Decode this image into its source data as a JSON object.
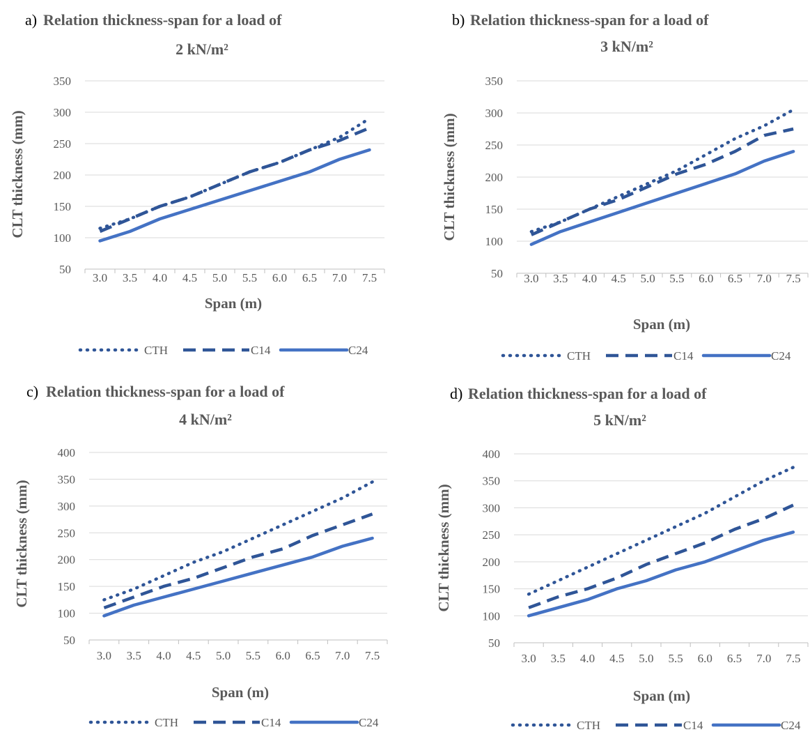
{
  "chart_data": [
    {
      "type": "line",
      "panel_label": "a)",
      "title": "Relation thickness-span for a load of",
      "subtitle": "2 kN/m²",
      "xlabel": "Span (m)",
      "ylabel": "CLT thickness (mm)",
      "categories": [
        "3.0",
        "3.5",
        "4.0",
        "4.5",
        "5.0",
        "5.5",
        "6.0",
        "6.5",
        "7.0",
        "7.5"
      ],
      "ylim": [
        50,
        350
      ],
      "yticks": [
        "50",
        "100",
        "150",
        "200",
        "250",
        "300",
        "350"
      ],
      "grid": true,
      "legend": "bottom",
      "series": [
        {
          "name": "CTH",
          "style": "dotted",
          "color": "#2f5597",
          "values": [
            115,
            130,
            150,
            165,
            185,
            205,
            220,
            240,
            260,
            290
          ]
        },
        {
          "name": "C14",
          "style": "dashed",
          "color": "#2f5597",
          "values": [
            110,
            130,
            150,
            165,
            185,
            205,
            220,
            240,
            255,
            275
          ]
        },
        {
          "name": "C24",
          "style": "solid",
          "color": "#4472c4",
          "values": [
            95,
            110,
            130,
            145,
            160,
            175,
            190,
            205,
            225,
            240
          ]
        }
      ]
    },
    {
      "type": "line",
      "panel_label": "b)",
      "title": "Relation thickness-span for a load of",
      "subtitle": "3 kN/m²",
      "xlabel": "Span (m)",
      "ylabel": "CLT thickness (mm)",
      "categories": [
        "3.0",
        "3.5",
        "4.0",
        "4.5",
        "5.0",
        "5.5",
        "6.0",
        "6.5",
        "7.0",
        "7.5"
      ],
      "ylim": [
        50,
        350
      ],
      "yticks": [
        "50",
        "100",
        "150",
        "200",
        "250",
        "300",
        "350"
      ],
      "grid": true,
      "legend": "bottom",
      "series": [
        {
          "name": "CTH",
          "style": "dotted",
          "color": "#2f5597",
          "values": [
            115,
            130,
            150,
            170,
            190,
            210,
            235,
            260,
            280,
            305
          ]
        },
        {
          "name": "C14",
          "style": "dashed",
          "color": "#2f5597",
          "values": [
            110,
            130,
            150,
            165,
            185,
            205,
            220,
            240,
            265,
            275
          ]
        },
        {
          "name": "C24",
          "style": "solid",
          "color": "#4472c4",
          "values": [
            95,
            115,
            130,
            145,
            160,
            175,
            190,
            205,
            225,
            240
          ]
        }
      ]
    },
    {
      "type": "line",
      "panel_label": "c)",
      "title": "Relation thickness-span for a load of",
      "subtitle": "4 kN/m²",
      "xlabel": "Span (m)",
      "ylabel": "CLT thickness (mm)",
      "categories": [
        "3.0",
        "3.5",
        "4.0",
        "4.5",
        "5.0",
        "5.5",
        "6.0",
        "6.5",
        "7.0",
        "7.5"
      ],
      "ylim": [
        50,
        400
      ],
      "yticks": [
        "50",
        "100",
        "150",
        "200",
        "250",
        "300",
        "350",
        "400"
      ],
      "grid": true,
      "legend": "bottom",
      "series": [
        {
          "name": "CTH",
          "style": "dotted",
          "color": "#2f5597",
          "values": [
            125,
            145,
            170,
            195,
            215,
            240,
            265,
            290,
            315,
            345
          ]
        },
        {
          "name": "C14",
          "style": "dashed",
          "color": "#2f5597",
          "values": [
            110,
            130,
            150,
            165,
            185,
            205,
            220,
            245,
            265,
            285
          ]
        },
        {
          "name": "C24",
          "style": "solid",
          "color": "#4472c4",
          "values": [
            95,
            115,
            130,
            145,
            160,
            175,
            190,
            205,
            225,
            240
          ]
        }
      ]
    },
    {
      "type": "line",
      "panel_label": "d)",
      "title": "Relation thickness-span for a load of",
      "subtitle": "5 kN/m²",
      "xlabel": "Span (m)",
      "ylabel": "CLT thickness (mm)",
      "categories": [
        "3.0",
        "3.5",
        "4.0",
        "4.5",
        "5.0",
        "5.5",
        "6.0",
        "6.5",
        "7.0",
        "7.5"
      ],
      "ylim": [
        50,
        400
      ],
      "yticks": [
        "50",
        "100",
        "150",
        "200",
        "250",
        "300",
        "350",
        "400"
      ],
      "grid": true,
      "legend": "bottom",
      "series": [
        {
          "name": "CTH",
          "style": "dotted",
          "color": "#2f5597",
          "values": [
            140,
            165,
            190,
            215,
            240,
            265,
            290,
            320,
            350,
            375
          ]
        },
        {
          "name": "C14",
          "style": "dashed",
          "color": "#2f5597",
          "values": [
            115,
            135,
            150,
            170,
            195,
            215,
            235,
            260,
            280,
            305
          ]
        },
        {
          "name": "C24",
          "style": "solid",
          "color": "#4472c4",
          "values": [
            100,
            115,
            130,
            150,
            165,
            185,
            200,
            220,
            240,
            255
          ]
        }
      ]
    }
  ]
}
